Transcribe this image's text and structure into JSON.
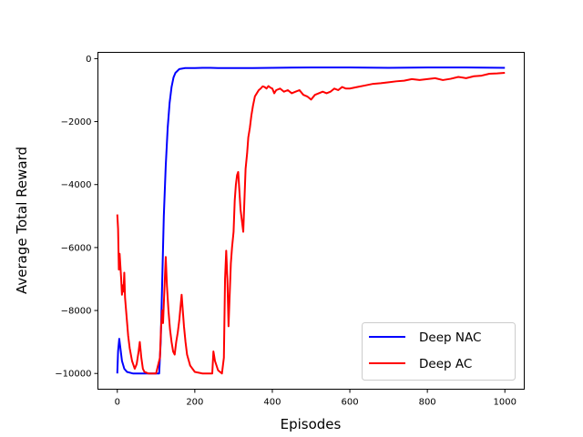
{
  "chart_data": {
    "type": "line",
    "title": "",
    "xlabel": "Episodes",
    "ylabel": "Average Total Reward",
    "xlim": [
      -50,
      1050
    ],
    "ylim": [
      -10500,
      200
    ],
    "xticks": [
      0,
      200,
      400,
      600,
      800,
      1000
    ],
    "yticks": [
      0,
      -2000,
      -4000,
      -6000,
      -8000,
      -10000
    ],
    "grid": false,
    "legend": "lower right",
    "series": [
      {
        "name": "Deep NAC",
        "color": "#0000ff",
        "points": [
          [
            0,
            -10000
          ],
          [
            2,
            -9300
          ],
          [
            5,
            -8900
          ],
          [
            8,
            -9200
          ],
          [
            12,
            -9600
          ],
          [
            18,
            -9850
          ],
          [
            25,
            -9950
          ],
          [
            40,
            -10000
          ],
          [
            60,
            -10000
          ],
          [
            80,
            -10000
          ],
          [
            100,
            -10000
          ],
          [
            108,
            -10000
          ],
          [
            112,
            -9000
          ],
          [
            116,
            -7000
          ],
          [
            120,
            -5000
          ],
          [
            125,
            -3400
          ],
          [
            130,
            -2200
          ],
          [
            135,
            -1400
          ],
          [
            140,
            -900
          ],
          [
            145,
            -600
          ],
          [
            150,
            -450
          ],
          [
            160,
            -330
          ],
          [
            175,
            -300
          ],
          [
            200,
            -300
          ],
          [
            220,
            -290
          ],
          [
            240,
            -290
          ],
          [
            260,
            -300
          ],
          [
            300,
            -300
          ],
          [
            350,
            -300
          ],
          [
            400,
            -290
          ],
          [
            450,
            -285
          ],
          [
            500,
            -280
          ],
          [
            600,
            -280
          ],
          [
            700,
            -290
          ],
          [
            800,
            -280
          ],
          [
            900,
            -280
          ],
          [
            1000,
            -290
          ]
        ]
      },
      {
        "name": "Deep AC",
        "color": "#ff0000",
        "points": [
          [
            0,
            -4950
          ],
          [
            2,
            -5400
          ],
          [
            4,
            -6700
          ],
          [
            6,
            -6200
          ],
          [
            8,
            -6600
          ],
          [
            10,
            -7000
          ],
          [
            12,
            -7500
          ],
          [
            14,
            -7200
          ],
          [
            16,
            -7400
          ],
          [
            18,
            -6800
          ],
          [
            20,
            -7600
          ],
          [
            24,
            -8200
          ],
          [
            28,
            -8800
          ],
          [
            32,
            -9200
          ],
          [
            38,
            -9600
          ],
          [
            45,
            -9850
          ],
          [
            50,
            -9700
          ],
          [
            55,
            -9300
          ],
          [
            58,
            -9000
          ],
          [
            62,
            -9500
          ],
          [
            66,
            -9850
          ],
          [
            70,
            -9950
          ],
          [
            80,
            -10000
          ],
          [
            100,
            -10000
          ],
          [
            110,
            -9500
          ],
          [
            113,
            -8500
          ],
          [
            116,
            -8000
          ],
          [
            118,
            -8400
          ],
          [
            121,
            -7500
          ],
          [
            125,
            -6300
          ],
          [
            128,
            -7200
          ],
          [
            132,
            -8000
          ],
          [
            136,
            -8600
          ],
          [
            140,
            -9000
          ],
          [
            144,
            -9300
          ],
          [
            148,
            -9400
          ],
          [
            152,
            -9000
          ],
          [
            156,
            -8700
          ],
          [
            160,
            -8300
          ],
          [
            163,
            -7900
          ],
          [
            166,
            -7500
          ],
          [
            169,
            -8000
          ],
          [
            172,
            -8500
          ],
          [
            176,
            -9000
          ],
          [
            180,
            -9400
          ],
          [
            188,
            -9750
          ],
          [
            200,
            -9950
          ],
          [
            220,
            -10000
          ],
          [
            245,
            -10000
          ],
          [
            248,
            -9300
          ],
          [
            252,
            -9600
          ],
          [
            260,
            -9900
          ],
          [
            270,
            -10000
          ],
          [
            275,
            -9500
          ],
          [
            278,
            -7000
          ],
          [
            281,
            -6100
          ],
          [
            284,
            -7000
          ],
          [
            287,
            -8500
          ],
          [
            290,
            -7500
          ],
          [
            293,
            -6500
          ],
          [
            296,
            -6000
          ],
          [
            300,
            -5500
          ],
          [
            303,
            -4500
          ],
          [
            306,
            -4000
          ],
          [
            309,
            -3700
          ],
          [
            312,
            -3600
          ],
          [
            315,
            -4200
          ],
          [
            318,
            -4800
          ],
          [
            320,
            -5000
          ],
          [
            322,
            -5200
          ],
          [
            325,
            -5500
          ],
          [
            328,
            -4500
          ],
          [
            331,
            -3500
          ],
          [
            335,
            -3000
          ],
          [
            338,
            -2500
          ],
          [
            342,
            -2200
          ],
          [
            346,
            -1800
          ],
          [
            350,
            -1500
          ],
          [
            355,
            -1200
          ],
          [
            360,
            -1100
          ],
          [
            365,
            -1000
          ],
          [
            370,
            -950
          ],
          [
            375,
            -880
          ],
          [
            380,
            -900
          ],
          [
            385,
            -950
          ],
          [
            390,
            -870
          ],
          [
            395,
            -920
          ],
          [
            400,
            -950
          ],
          [
            405,
            -1100
          ],
          [
            410,
            -1000
          ],
          [
            420,
            -950
          ],
          [
            430,
            -1050
          ],
          [
            440,
            -1000
          ],
          [
            450,
            -1100
          ],
          [
            460,
            -1050
          ],
          [
            470,
            -1000
          ],
          [
            480,
            -1150
          ],
          [
            490,
            -1200
          ],
          [
            500,
            -1300
          ],
          [
            510,
            -1150
          ],
          [
            520,
            -1100
          ],
          [
            530,
            -1050
          ],
          [
            540,
            -1100
          ],
          [
            550,
            -1050
          ],
          [
            560,
            -950
          ],
          [
            570,
            -1000
          ],
          [
            580,
            -900
          ],
          [
            590,
            -950
          ],
          [
            600,
            -950
          ],
          [
            620,
            -900
          ],
          [
            640,
            -850
          ],
          [
            660,
            -800
          ],
          [
            680,
            -780
          ],
          [
            700,
            -750
          ],
          [
            720,
            -720
          ],
          [
            740,
            -700
          ],
          [
            760,
            -650
          ],
          [
            780,
            -680
          ],
          [
            800,
            -650
          ],
          [
            820,
            -620
          ],
          [
            840,
            -680
          ],
          [
            860,
            -640
          ],
          [
            880,
            -580
          ],
          [
            900,
            -620
          ],
          [
            920,
            -560
          ],
          [
            940,
            -540
          ],
          [
            960,
            -480
          ],
          [
            980,
            -470
          ],
          [
            1000,
            -450
          ]
        ]
      }
    ]
  }
}
